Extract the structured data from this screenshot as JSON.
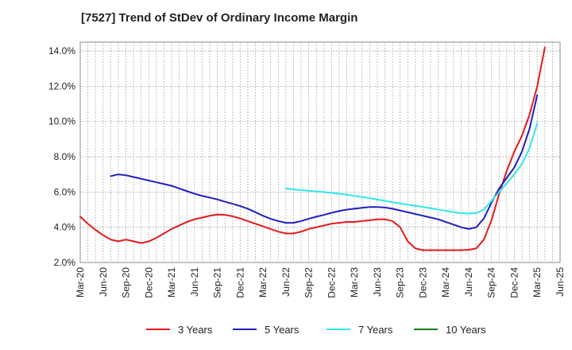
{
  "chart_data": {
    "type": "line",
    "title": "[7527]  Trend of StDev of Ordinary Income Margin",
    "xlabel": "",
    "ylabel": "",
    "x_ticks": [
      "Mar-20",
      "Jun-20",
      "Sep-20",
      "Dec-20",
      "Mar-21",
      "Jun-21",
      "Sep-21",
      "Dec-21",
      "Mar-22",
      "Jun-22",
      "Sep-22",
      "Dec-22",
      "Mar-23",
      "Jun-23",
      "Sep-23",
      "Dec-23",
      "Mar-24",
      "Jun-24",
      "Sep-24",
      "Dec-24",
      "Mar-25",
      "Jun-25"
    ],
    "y_ticks": [
      "2.0%",
      "4.0%",
      "6.0%",
      "8.0%",
      "10.0%",
      "12.0%",
      "14.0%"
    ],
    "ylim": [
      2.0,
      14.5
    ],
    "grid": true,
    "legend_position": "bottom",
    "series": [
      {
        "name": "3 Years",
        "color": "#e31a1c",
        "points": [
          [
            0,
            4.6
          ],
          [
            1,
            4.2
          ],
          [
            2,
            3.85
          ],
          [
            3,
            3.55
          ],
          [
            4,
            3.3
          ],
          [
            5,
            3.2
          ],
          [
            6,
            3.3
          ],
          [
            7,
            3.2
          ],
          [
            8,
            3.1
          ],
          [
            9,
            3.2
          ],
          [
            10,
            3.4
          ],
          [
            11,
            3.65
          ],
          [
            12,
            3.9
          ],
          [
            13,
            4.1
          ],
          [
            14,
            4.3
          ],
          [
            15,
            4.45
          ],
          [
            16,
            4.55
          ],
          [
            17,
            4.65
          ],
          [
            18,
            4.72
          ],
          [
            19,
            4.7
          ],
          [
            20,
            4.62
          ],
          [
            21,
            4.5
          ],
          [
            22,
            4.35
          ],
          [
            23,
            4.2
          ],
          [
            24,
            4.05
          ],
          [
            25,
            3.9
          ],
          [
            26,
            3.75
          ],
          [
            27,
            3.65
          ],
          [
            28,
            3.65
          ],
          [
            29,
            3.75
          ],
          [
            30,
            3.9
          ],
          [
            31,
            4.0
          ],
          [
            32,
            4.1
          ],
          [
            33,
            4.2
          ],
          [
            34,
            4.25
          ],
          [
            35,
            4.3
          ],
          [
            36,
            4.3
          ],
          [
            37,
            4.35
          ],
          [
            38,
            4.4
          ],
          [
            39,
            4.45
          ],
          [
            40,
            4.45
          ],
          [
            41,
            4.35
          ],
          [
            42,
            4.0
          ],
          [
            43,
            3.2
          ],
          [
            44,
            2.8
          ],
          [
            45,
            2.7
          ],
          [
            46,
            2.7
          ],
          [
            47,
            2.7
          ],
          [
            48,
            2.7
          ],
          [
            49,
            2.7
          ],
          [
            50,
            2.7
          ],
          [
            51,
            2.72
          ],
          [
            52,
            2.8
          ],
          [
            53,
            3.3
          ],
          [
            54,
            4.4
          ],
          [
            55,
            5.9
          ],
          [
            56,
            7.2
          ],
          [
            57,
            8.3
          ],
          [
            58,
            9.2
          ],
          [
            59,
            10.4
          ],
          [
            60,
            12.0
          ],
          [
            61,
            14.2
          ]
        ]
      },
      {
        "name": "5 Years",
        "color": "#1f1fbf",
        "points": [
          [
            4,
            6.9
          ],
          [
            5,
            7.0
          ],
          [
            6,
            6.95
          ],
          [
            7,
            6.85
          ],
          [
            8,
            6.75
          ],
          [
            9,
            6.65
          ],
          [
            10,
            6.55
          ],
          [
            11,
            6.45
          ],
          [
            12,
            6.35
          ],
          [
            13,
            6.2
          ],
          [
            14,
            6.05
          ],
          [
            15,
            5.9
          ],
          [
            16,
            5.78
          ],
          [
            17,
            5.68
          ],
          [
            18,
            5.58
          ],
          [
            19,
            5.45
          ],
          [
            20,
            5.33
          ],
          [
            21,
            5.2
          ],
          [
            22,
            5.05
          ],
          [
            23,
            4.85
          ],
          [
            24,
            4.65
          ],
          [
            25,
            4.48
          ],
          [
            26,
            4.35
          ],
          [
            27,
            4.25
          ],
          [
            28,
            4.25
          ],
          [
            29,
            4.35
          ],
          [
            30,
            4.48
          ],
          [
            31,
            4.6
          ],
          [
            32,
            4.7
          ],
          [
            33,
            4.82
          ],
          [
            34,
            4.92
          ],
          [
            35,
            5.0
          ],
          [
            36,
            5.05
          ],
          [
            37,
            5.1
          ],
          [
            38,
            5.15
          ],
          [
            39,
            5.15
          ],
          [
            40,
            5.12
          ],
          [
            41,
            5.05
          ],
          [
            42,
            4.95
          ],
          [
            43,
            4.85
          ],
          [
            44,
            4.75
          ],
          [
            45,
            4.65
          ],
          [
            46,
            4.55
          ],
          [
            47,
            4.45
          ],
          [
            48,
            4.3
          ],
          [
            49,
            4.15
          ],
          [
            50,
            4.0
          ],
          [
            51,
            3.9
          ],
          [
            52,
            4.0
          ],
          [
            53,
            4.5
          ],
          [
            54,
            5.4
          ],
          [
            55,
            6.2
          ],
          [
            56,
            6.8
          ],
          [
            57,
            7.4
          ],
          [
            58,
            8.3
          ],
          [
            59,
            9.6
          ],
          [
            60,
            11.5
          ]
        ]
      },
      {
        "name": "7 Years",
        "color": "#33e6e6",
        "points": [
          [
            27,
            6.2
          ],
          [
            28,
            6.15
          ],
          [
            29,
            6.1
          ],
          [
            30,
            6.07
          ],
          [
            31,
            6.03
          ],
          [
            32,
            6.0
          ],
          [
            33,
            5.95
          ],
          [
            34,
            5.9
          ],
          [
            35,
            5.85
          ],
          [
            36,
            5.78
          ],
          [
            37,
            5.72
          ],
          [
            38,
            5.65
          ],
          [
            39,
            5.57
          ],
          [
            40,
            5.5
          ],
          [
            41,
            5.42
          ],
          [
            42,
            5.35
          ],
          [
            43,
            5.28
          ],
          [
            44,
            5.22
          ],
          [
            45,
            5.15
          ],
          [
            46,
            5.08
          ],
          [
            47,
            5.0
          ],
          [
            48,
            4.93
          ],
          [
            49,
            4.86
          ],
          [
            50,
            4.8
          ],
          [
            51,
            4.78
          ],
          [
            52,
            4.8
          ],
          [
            53,
            5.0
          ],
          [
            54,
            5.5
          ],
          [
            55,
            6.0
          ],
          [
            56,
            6.5
          ],
          [
            57,
            7.0
          ],
          [
            58,
            7.6
          ],
          [
            59,
            8.5
          ],
          [
            60,
            9.9
          ]
        ]
      },
      {
        "name": "10 Years",
        "color": "#1a7f1a",
        "points": []
      }
    ]
  }
}
